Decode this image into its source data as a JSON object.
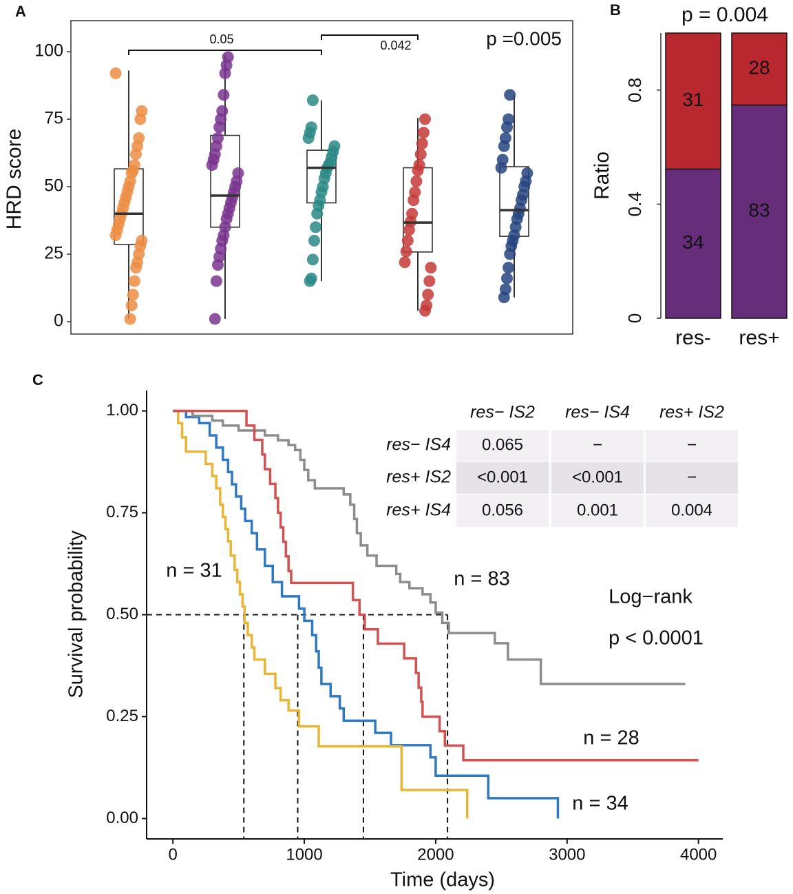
{
  "chart_data": [
    {
      "type": "box",
      "panel_label": "A",
      "ylabel": "HRD score",
      "ylim": [
        -4.6,
        111.5
      ],
      "yticks": [
        0,
        25,
        50,
        75,
        100
      ],
      "annotations": [
        "0.05",
        "0.042"
      ],
      "p_text": "p =0.005",
      "series": [
        {
          "color": "#ec8d43",
          "box": {
            "whislo": 1,
            "q1": 28.6,
            "med": 40,
            "q3": 56.6,
            "whishi": 93
          },
          "values": [
            92,
            78,
            75,
            68,
            65,
            62,
            58,
            56,
            55,
            52,
            50,
            48,
            46,
            44,
            42,
            40,
            38,
            36,
            34,
            32,
            30,
            28,
            25,
            22,
            20,
            15,
            10,
            6,
            1
          ]
        },
        {
          "color": "#7a358f",
          "box": {
            "whislo": 1,
            "q1": 35,
            "med": 46.7,
            "q3": 69,
            "whishi": 98.7
          },
          "values": [
            98,
            95,
            92,
            84,
            78,
            75,
            72,
            68,
            65,
            62,
            60,
            58,
            55,
            52,
            50,
            48,
            46,
            44,
            42,
            40,
            38,
            35,
            32,
            30,
            27,
            24,
            21,
            15,
            1
          ]
        },
        {
          "color": "#2a8a86",
          "box": {
            "whislo": 15,
            "q1": 44,
            "med": 57,
            "q3": 63.5,
            "whishi": 82
          },
          "values": [
            82,
            72,
            70,
            68,
            65,
            63,
            61,
            59,
            58,
            57,
            55,
            53,
            50,
            48,
            45,
            43,
            40,
            35,
            30,
            23,
            16,
            15
          ]
        },
        {
          "color": "#c43a36",
          "box": {
            "whislo": 4,
            "q1": 25.8,
            "med": 36.7,
            "q3": 57,
            "whishi": 75.5
          },
          "values": [
            75,
            70,
            66,
            62,
            58,
            56,
            52,
            48,
            45,
            40,
            37,
            34,
            30,
            26,
            22,
            20,
            15,
            10,
            6,
            4
          ]
        },
        {
          "color": "#27447f",
          "box": {
            "whislo": 9,
            "q1": 31.6,
            "med": 41.3,
            "q3": 57.4,
            "whishi": 84
          },
          "values": [
            84,
            75,
            72,
            68,
            65,
            60,
            57,
            55,
            52,
            50,
            47,
            45,
            42,
            40,
            38,
            35,
            32,
            30,
            28,
            25,
            20,
            16,
            12,
            9
          ]
        }
      ]
    },
    {
      "type": "bar",
      "panel_label": "B",
      "title": "p = 0.004",
      "ylabel": "Ratio",
      "normalize": true,
      "ylim": [
        0,
        1
      ],
      "yticks": [
        0,
        0.4,
        0.8
      ],
      "categories": [
        "res-",
        "res+"
      ],
      "series": [
        {
          "color": "#662d7a",
          "values": [
            34,
            83
          ]
        },
        {
          "color": "#b8282e",
          "values": [
            31,
            28
          ]
        }
      ]
    },
    {
      "type": "step",
      "panel_label": "C",
      "xlabel": "Time (days)",
      "ylabel": "Survival probability",
      "xlim": [
        -200,
        4185
      ],
      "ylim": [
        -0.05,
        1.05
      ],
      "xticks": [
        0,
        1000,
        2000,
        3000,
        4000
      ],
      "yticks": [
        {
          "value": 0,
          "label": "0.00"
        },
        {
          "value": 0.25,
          "label": "0.25"
        },
        {
          "value": 0.5,
          "label": "0.50"
        },
        {
          "value": 0.75,
          "label": "0.75"
        },
        {
          "value": 1,
          "label": "1.00"
        }
      ],
      "median_x": [
        540,
        950,
        1450,
        2090
      ],
      "median_y": 0.5,
      "annotations": [
        "n = 31",
        "n = 83",
        "Log−rank",
        "p < 0.0001",
        "n = 28",
        "n = 34"
      ],
      "series": [
        {
          "name": "res− IS2",
          "color": "#2f78c2",
          "x": [
            0,
            100,
            200,
            280,
            330,
            380,
            420,
            450,
            480,
            520,
            550,
            600,
            640,
            700,
            760,
            830,
            960,
            1000,
            1060,
            1090,
            1110,
            1130,
            1200,
            1270,
            1300,
            1540,
            1660,
            1960,
            2000,
            2400,
            2930
          ],
          "values": [
            1,
            0.985,
            0.97,
            0.94,
            0.91,
            0.88,
            0.85,
            0.82,
            0.79,
            0.76,
            0.73,
            0.7,
            0.66,
            0.62,
            0.58,
            0.545,
            0.515,
            0.485,
            0.45,
            0.41,
            0.37,
            0.33,
            0.3,
            0.27,
            0.24,
            0.21,
            0.18,
            0.15,
            0.105,
            0.05,
            0
          ]
        },
        {
          "name": "res− IS4",
          "color": "#e9b534",
          "x": [
            0,
            40,
            70,
            100,
            250,
            300,
            330,
            360,
            380,
            400,
            420,
            440,
            470,
            490,
            510,
            530,
            545,
            570,
            600,
            620,
            700,
            780,
            820,
            880,
            960,
            1110,
            1740,
            2240
          ],
          "values": [
            1,
            0.97,
            0.935,
            0.9,
            0.87,
            0.84,
            0.81,
            0.77,
            0.74,
            0.71,
            0.68,
            0.645,
            0.61,
            0.58,
            0.55,
            0.52,
            0.48,
            0.45,
            0.42,
            0.39,
            0.355,
            0.32,
            0.29,
            0.265,
            0.226,
            0.177,
            0.07,
            0
          ]
        },
        {
          "name": "res+ IS2",
          "color": "#8c8c8c",
          "x": [
            0,
            150,
            300,
            380,
            500,
            700,
            800,
            880,
            930,
            970,
            1000,
            1030,
            1080,
            1300,
            1350,
            1380,
            1400,
            1430,
            1480,
            1550,
            1700,
            1730,
            1800,
            1900,
            1960,
            2000,
            2050,
            2100,
            2450,
            2550,
            2800,
            3900
          ],
          "values": [
            1,
            0.988,
            0.976,
            0.964,
            0.952,
            0.94,
            0.928,
            0.916,
            0.904,
            0.88,
            0.855,
            0.83,
            0.81,
            0.795,
            0.77,
            0.735,
            0.7,
            0.67,
            0.645,
            0.62,
            0.6,
            0.58,
            0.565,
            0.55,
            0.53,
            0.505,
            0.48,
            0.455,
            0.43,
            0.39,
            0.33,
            0.33
          ]
        },
        {
          "name": "res+ IS4",
          "color": "#d05252",
          "x": [
            0,
            560,
            620,
            680,
            700,
            740,
            780,
            800,
            820,
            840,
            860,
            880,
            900,
            1370,
            1420,
            1460,
            1560,
            1760,
            1850,
            1870,
            1890,
            1900,
            2030,
            2070,
            2210,
            4000
          ],
          "values": [
            1,
            0.964,
            0.929,
            0.893,
            0.857,
            0.821,
            0.786,
            0.75,
            0.714,
            0.679,
            0.643,
            0.607,
            0.578,
            0.536,
            0.5,
            0.464,
            0.429,
            0.393,
            0.357,
            0.321,
            0.286,
            0.25,
            0.214,
            0.179,
            0.143,
            0.143
          ]
        }
      ],
      "pvalue_table": {
        "columns": [
          "res− IS2",
          "res− IS4",
          "res+ IS2"
        ],
        "rows": [
          {
            "label": "res− IS4",
            "cells": [
              "0.065",
              "−",
              "−"
            ]
          },
          {
            "label": "res+ IS2",
            "cells": [
              "<0.001",
              "<0.001",
              "−"
            ]
          },
          {
            "label": "res+ IS4",
            "cells": [
              "0.056",
              "0.001",
              "0.004"
            ]
          }
        ]
      }
    }
  ]
}
